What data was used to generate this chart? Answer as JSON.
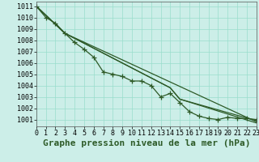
{
  "title": "Graphe pression niveau de la mer (hPa)",
  "background_color": "#cceee8",
  "grid_color": "#99ddcc",
  "line_color": "#2d5a27",
  "xlim": [
    0,
    23
  ],
  "ylim": [
    1000.4,
    1011.4
  ],
  "yticks": [
    1001,
    1002,
    1003,
    1004,
    1005,
    1006,
    1007,
    1008,
    1009,
    1010,
    1011
  ],
  "xticks": [
    0,
    1,
    2,
    3,
    4,
    5,
    6,
    7,
    8,
    9,
    10,
    11,
    12,
    13,
    14,
    15,
    16,
    17,
    18,
    19,
    20,
    21,
    22,
    23
  ],
  "series": [
    {
      "x": [
        0,
        1,
        2,
        3,
        4,
        5,
        6,
        7,
        8,
        9,
        10,
        11,
        12,
        13,
        14,
        15,
        16,
        17,
        18,
        19,
        20,
        21,
        22,
        23
      ],
      "y": [
        1011.0,
        1010.0,
        1009.5,
        1008.6,
        1007.8,
        1007.2,
        1006.5,
        1005.2,
        1005.0,
        1004.8,
        1004.4,
        1004.4,
        1004.0,
        1003.0,
        1003.3,
        1002.5,
        1001.7,
        1001.3,
        1001.1,
        1001.0,
        1001.2,
        1001.1,
        1001.1,
        1001.0
      ],
      "marker": "+"
    },
    {
      "x": [
        0,
        3,
        23
      ],
      "y": [
        1011.0,
        1008.6,
        1000.8
      ],
      "marker": null
    },
    {
      "x": [
        0,
        3,
        14,
        15,
        23
      ],
      "y": [
        1011.0,
        1008.6,
        1003.8,
        1002.8,
        1000.9
      ],
      "marker": null
    },
    {
      "x": [
        0,
        3,
        14,
        15,
        23
      ],
      "y": [
        1011.0,
        1008.6,
        1003.8,
        1002.8,
        1000.7
      ],
      "marker": null
    }
  ],
  "linewidth": 0.9,
  "marker_size": 4,
  "title_fontsize": 8,
  "tick_fontsize": 6
}
